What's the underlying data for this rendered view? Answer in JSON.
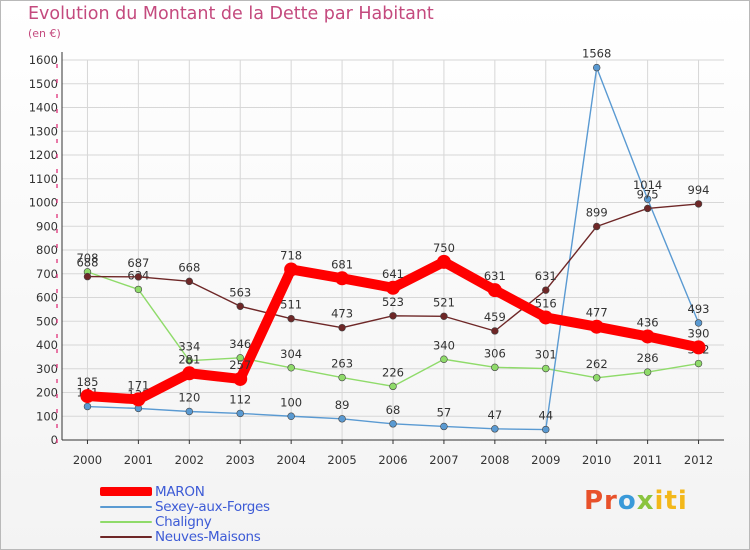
{
  "chart_data": {
    "type": "line",
    "title": "Evolution du Montant de la Dette par Habitant",
    "subtitle": "(en €)",
    "x": [
      "2000",
      "2001",
      "2002",
      "2003",
      "2004",
      "2005",
      "2006",
      "2007",
      "2008",
      "2009",
      "2010",
      "2011",
      "2012"
    ],
    "yticks": [
      0,
      100,
      200,
      300,
      400,
      500,
      600,
      700,
      800,
      900,
      1000,
      1100,
      1200,
      1300,
      1400,
      1500,
      1600
    ],
    "ylim": [
      0,
      1600
    ],
    "grid": true,
    "legend_position": "bottom-left",
    "series": [
      {
        "name": "Chaligny",
        "color": "#8fdb6a",
        "values": [
          708,
          634,
          334,
          346,
          304,
          263,
          226,
          340,
          306,
          301,
          262,
          286,
          322
        ],
        "labels": [
          "708",
          "634",
          "334",
          "346",
          "304",
          "263",
          "226",
          "340",
          "306",
          "301",
          "262",
          "286",
          "322"
        ]
      },
      {
        "name": "Sexey-aux-Forges",
        "color": "#5a9ad2",
        "values": [
          141,
          133,
          120,
          112,
          100,
          89,
          68,
          57,
          47,
          44,
          1568,
          1014,
          493
        ],
        "labels": [
          "141",
          "133",
          "120",
          "112",
          "100",
          "89",
          "68",
          "57",
          "47",
          "44",
          "1568",
          "1014",
          "493"
        ]
      },
      {
        "name": "Neuves-Maisons",
        "color": "#6e2727",
        "values": [
          688,
          687,
          668,
          563,
          511,
          473,
          523,
          521,
          459,
          631,
          899,
          975,
          994
        ],
        "labels": [
          "688",
          "687",
          "668",
          "563",
          "511",
          "473",
          "523",
          "521",
          "459",
          "631",
          "899",
          "975",
          "994"
        ]
      },
      {
        "name": "MARON",
        "color": "#ff0000",
        "values": [
          185,
          171,
          281,
          257,
          718,
          681,
          641,
          750,
          631,
          516,
          477,
          436,
          390
        ],
        "labels": [
          "185",
          "171",
          "281",
          "257",
          "718",
          "681",
          "641",
          "750",
          "631",
          "516",
          "477",
          "436",
          "390"
        ]
      }
    ],
    "legend": [
      "MARON",
      "Sexey-aux-Forges",
      "Chaligny",
      "Neuves-Maisons"
    ]
  },
  "brand": {
    "p1": "Pr",
    "p2": "o",
    "p3": "x",
    "p4": "iti"
  }
}
